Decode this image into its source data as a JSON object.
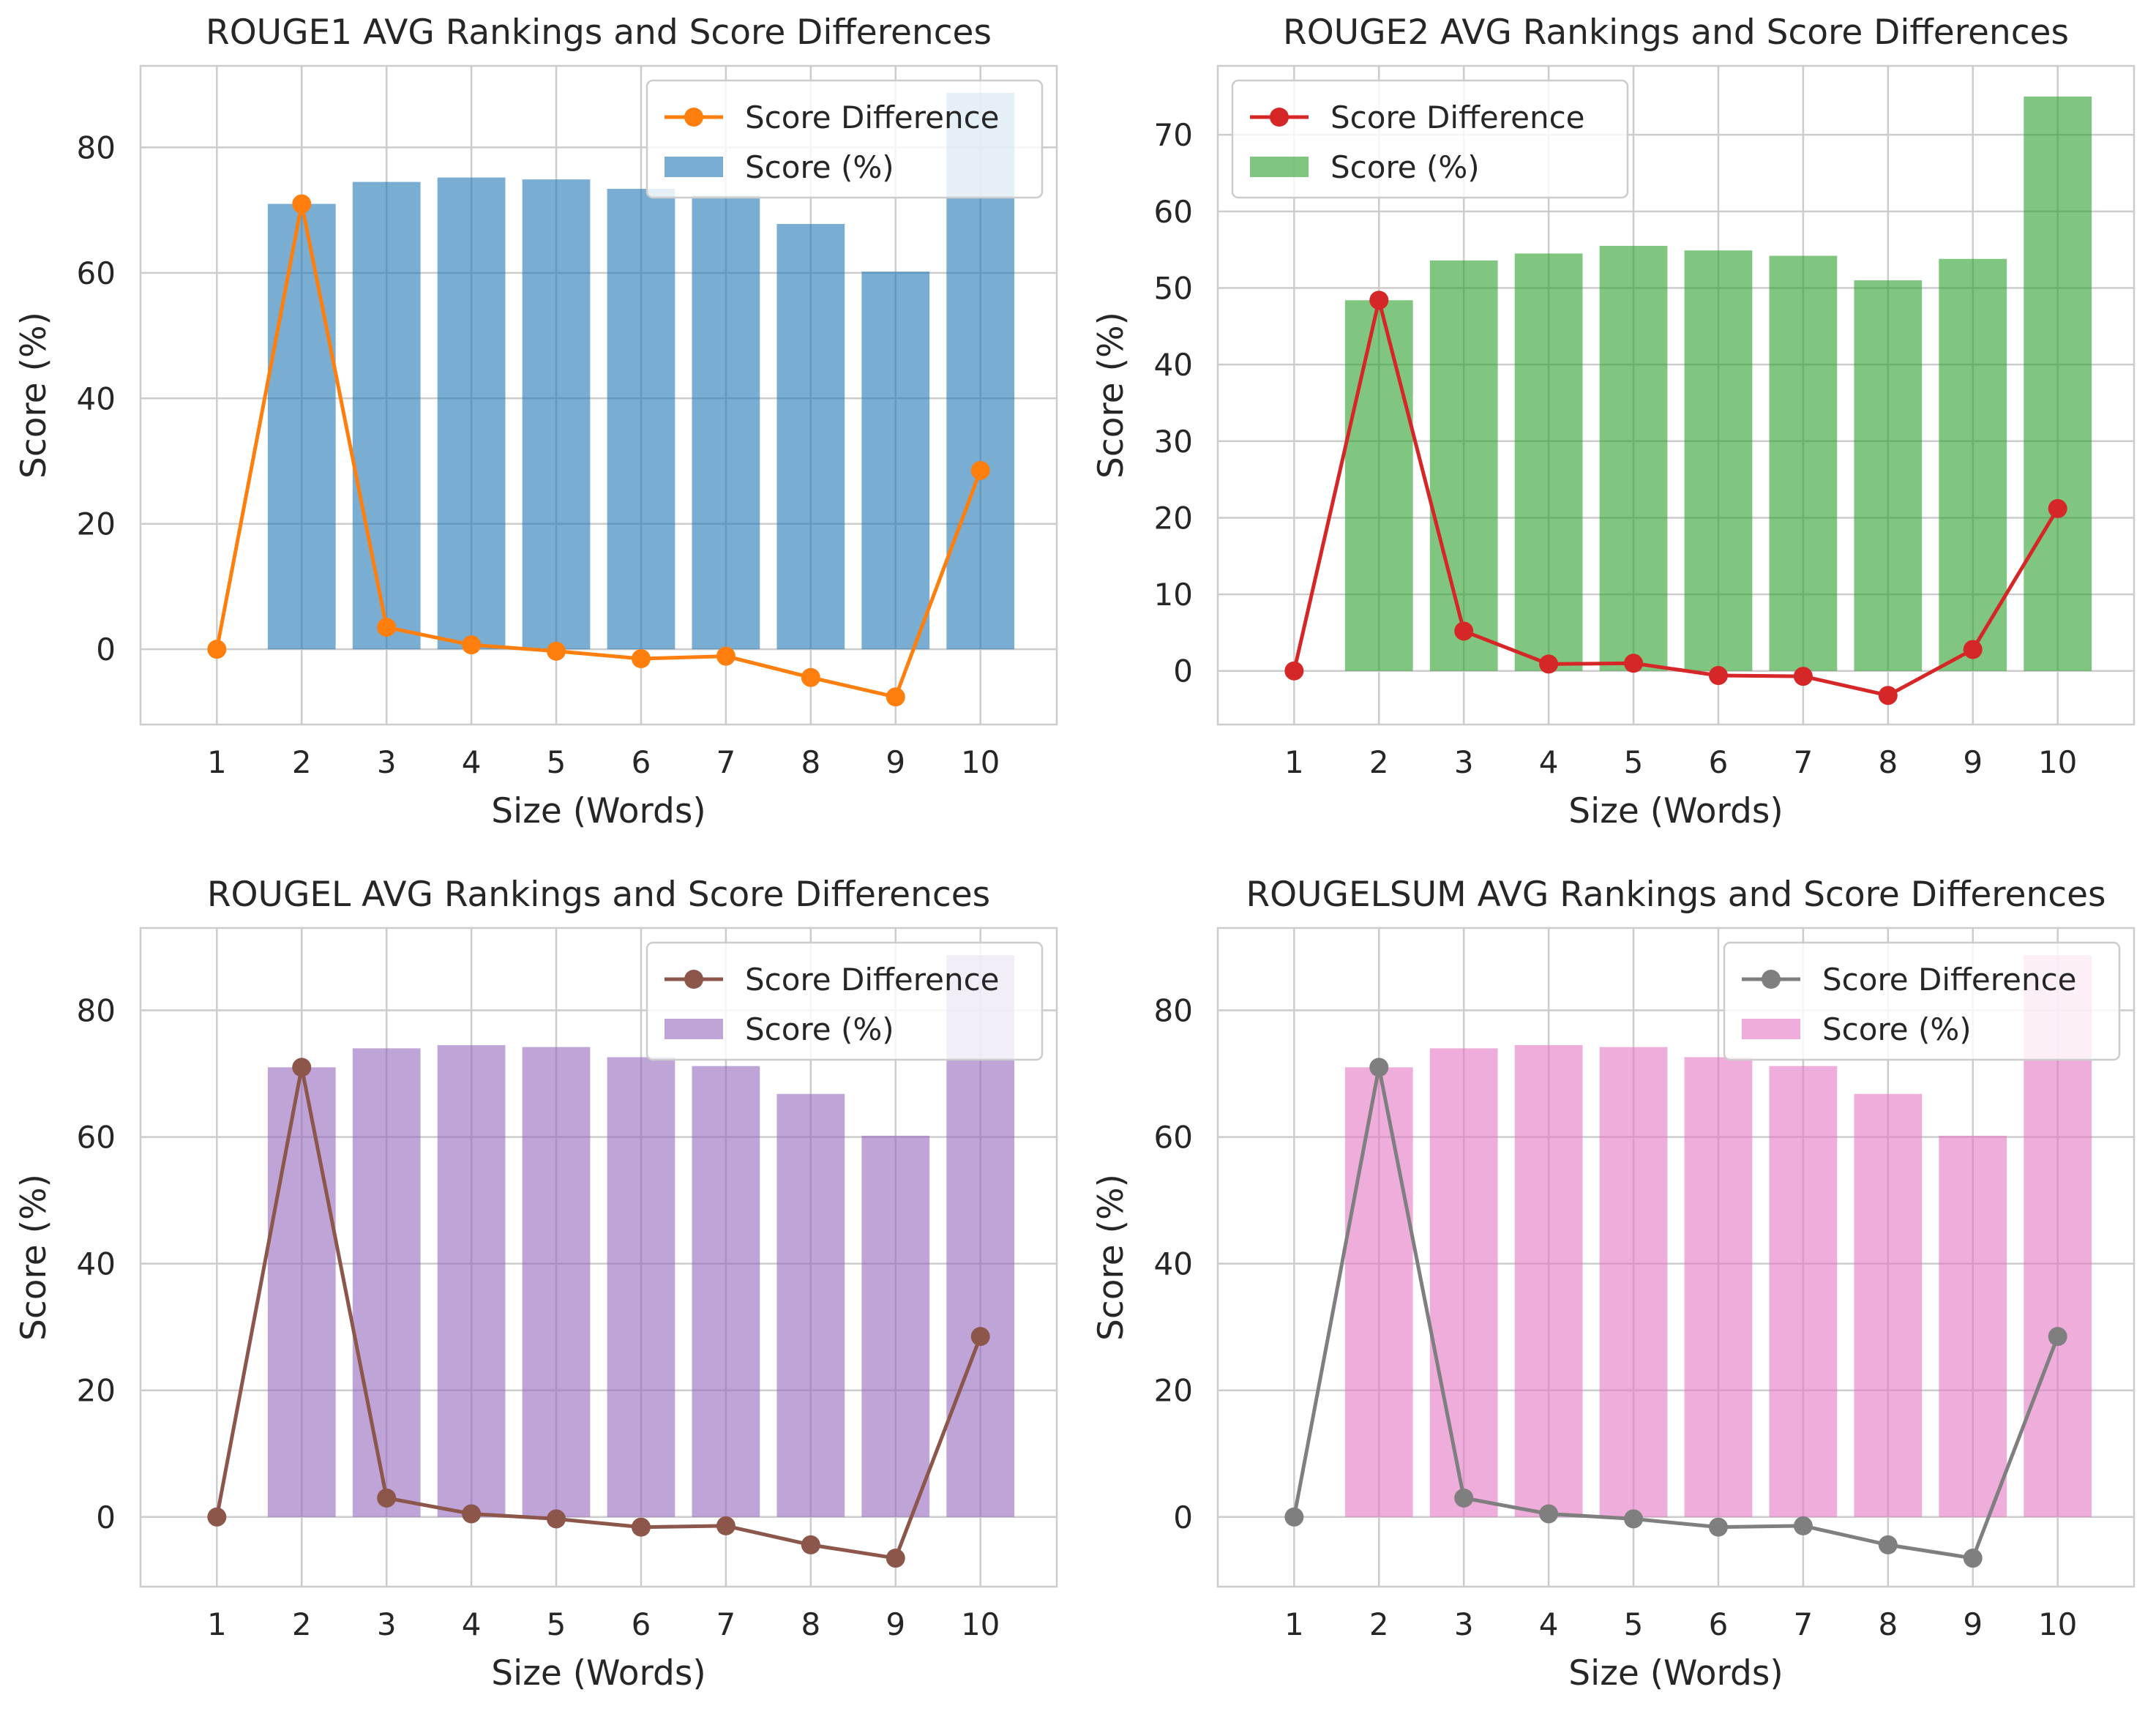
{
  "figure": {
    "xlabel": "Size (Words)",
    "ylabel": "Score (%)"
  },
  "chart_data": [
    {
      "type": "bar",
      "title": "ROUGE1 AVG Rankings and Score Differences",
      "xlabel": "Size (Words)",
      "ylabel": "Score (%)",
      "categories": [
        "1",
        "2",
        "3",
        "4",
        "5",
        "6",
        "7",
        "8",
        "9",
        "10"
      ],
      "ylim": [
        -12,
        93
      ],
      "yticks": [
        0,
        20,
        40,
        60,
        80
      ],
      "series": [
        {
          "name": "Score (%)",
          "kind": "bar",
          "color": "#1f77b4",
          "values": [
            0,
            71.0,
            74.5,
            75.2,
            74.9,
            73.4,
            72.3,
            67.8,
            60.2,
            88.7
          ]
        },
        {
          "name": "Score Difference",
          "kind": "line",
          "color": "#ff7f0e",
          "values": [
            0,
            71.0,
            3.5,
            0.7,
            -0.3,
            -1.5,
            -1.1,
            -4.5,
            -7.6,
            28.5
          ]
        }
      ],
      "legend": [
        "Score Difference",
        "Score (%)"
      ],
      "legend_loc": "upper right"
    },
    {
      "type": "bar",
      "title": "ROUGE2 AVG Rankings and Score Differences",
      "xlabel": "Size (Words)",
      "ylabel": "Score (%)",
      "categories": [
        "1",
        "2",
        "3",
        "4",
        "5",
        "6",
        "7",
        "8",
        "9",
        "10"
      ],
      "ylim": [
        -7,
        79
      ],
      "yticks": [
        0,
        10,
        20,
        30,
        40,
        50,
        60,
        70
      ],
      "series": [
        {
          "name": "Score (%)",
          "kind": "bar",
          "color": "#2ca02c",
          "values": [
            0,
            48.4,
            53.6,
            54.5,
            55.5,
            54.9,
            54.2,
            51.0,
            53.8,
            75.0
          ]
        },
        {
          "name": "Score Difference",
          "kind": "line",
          "color": "#d62728",
          "values": [
            0,
            48.4,
            5.2,
            0.9,
            1.0,
            -0.6,
            -0.7,
            -3.2,
            2.8,
            21.2
          ]
        }
      ],
      "legend": [
        "Score Difference",
        "Score (%)"
      ],
      "legend_loc": "upper left"
    },
    {
      "type": "bar",
      "title": "ROUGEL AVG Rankings and Score Differences",
      "xlabel": "Size (Words)",
      "ylabel": "Score (%)",
      "categories": [
        "1",
        "2",
        "3",
        "4",
        "5",
        "6",
        "7",
        "8",
        "9",
        "10"
      ],
      "ylim": [
        -11,
        93
      ],
      "yticks": [
        0,
        20,
        40,
        60,
        80
      ],
      "series": [
        {
          "name": "Score (%)",
          "kind": "bar",
          "color": "#9467bd",
          "values": [
            0,
            71.0,
            74.0,
            74.5,
            74.2,
            72.6,
            71.2,
            66.8,
            60.2,
            88.7
          ]
        },
        {
          "name": "Score Difference",
          "kind": "line",
          "color": "#8c564b",
          "values": [
            0,
            71.0,
            3.0,
            0.5,
            -0.3,
            -1.6,
            -1.4,
            -4.4,
            -6.5,
            28.5
          ]
        }
      ],
      "legend": [
        "Score Difference",
        "Score (%)"
      ],
      "legend_loc": "upper right"
    },
    {
      "type": "bar",
      "title": "ROUGELSUM AVG Rankings and Score Differences",
      "xlabel": "Size (Words)",
      "ylabel": "Score (%)",
      "categories": [
        "1",
        "2",
        "3",
        "4",
        "5",
        "6",
        "7",
        "8",
        "9",
        "10"
      ],
      "ylim": [
        -11,
        93
      ],
      "yticks": [
        0,
        20,
        40,
        60,
        80
      ],
      "series": [
        {
          "name": "Score (%)",
          "kind": "bar",
          "color": "#e377c2",
          "values": [
            0,
            71.0,
            74.0,
            74.5,
            74.2,
            72.6,
            71.2,
            66.8,
            60.2,
            88.7
          ]
        },
        {
          "name": "Score Difference",
          "kind": "line",
          "color": "#7f7f7f",
          "values": [
            0,
            71.0,
            3.0,
            0.5,
            -0.3,
            -1.6,
            -1.4,
            -4.4,
            -6.5,
            28.5
          ]
        }
      ],
      "legend": [
        "Score Difference",
        "Score (%)"
      ],
      "legend_loc": "upper right"
    }
  ]
}
